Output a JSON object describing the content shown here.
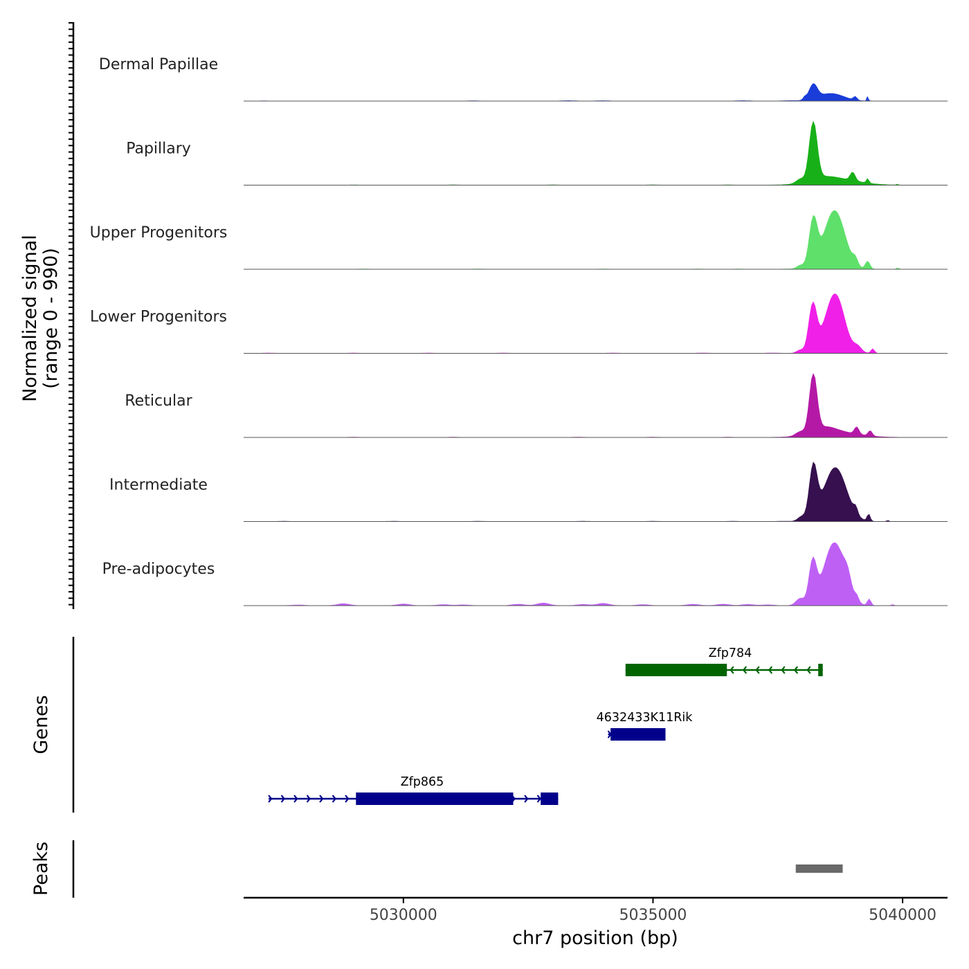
{
  "chart_data": {
    "type": "area",
    "title": "",
    "region": "chr7",
    "xlim": [
      5026800,
      5040900
    ],
    "xticks": [
      5030000,
      5035000,
      5040000
    ],
    "xtick_labels": [
      "5030000",
      "5035000",
      "5040000"
    ],
    "xlabel": "chr7 position (bp)",
    "ylabel_line1": "Normalized signal",
    "ylabel_line2": "(range 0 - 990)",
    "signal_range": [
      0,
      990
    ],
    "track_labels": {
      "genes": "Genes",
      "peaks": "Peaks"
    },
    "series": [
      {
        "name": "Dermal Papillae",
        "color": "#1a3cd8",
        "background": [
          [
            5027200,
            2
          ],
          [
            5031400,
            3
          ],
          [
            5033300,
            6
          ],
          [
            5034000,
            5
          ],
          [
            5036800,
            6
          ],
          [
            5037700,
            5
          ]
        ],
        "peaks": [
          [
            5038040,
            30,
            40
          ],
          [
            5038210,
            80,
            220
          ],
          [
            5038430,
            250,
            60
          ],
          [
            5038650,
            230,
            70
          ],
          [
            5039050,
            35,
            55
          ],
          [
            5039300,
            15,
            70
          ]
        ]
      },
      {
        "name": "Papillary",
        "color": "#18b018",
        "background": [
          [
            5029000,
            2
          ],
          [
            5031000,
            3
          ],
          [
            5033000,
            3
          ],
          [
            5035000,
            3
          ],
          [
            5036500,
            3
          ]
        ],
        "peaks": [
          [
            5037950,
            80,
            60
          ],
          [
            5038210,
            78,
            900
          ],
          [
            5038400,
            250,
            50
          ],
          [
            5038650,
            450,
            95
          ],
          [
            5039000,
            50,
            130
          ],
          [
            5039300,
            25,
            70
          ],
          [
            5039900,
            15,
            15
          ]
        ]
      },
      {
        "name": "Upper Progenitors",
        "color": "#5ee06a",
        "background": [
          [
            5029200,
            3
          ],
          [
            5031500,
            3
          ],
          [
            5034000,
            3
          ],
          [
            5035900,
            3
          ],
          [
            5036700,
            3
          ],
          [
            5037700,
            3
          ]
        ],
        "peaks": [
          [
            5037950,
            70,
            50
          ],
          [
            5038210,
            80,
            700
          ],
          [
            5038430,
            220,
            100
          ],
          [
            5038650,
            200,
            850
          ],
          [
            5039050,
            50,
            100
          ],
          [
            5039300,
            45,
            120
          ],
          [
            5039900,
            25,
            20
          ]
        ]
      },
      {
        "name": "Lower Progenitors",
        "color": "#f020e8",
        "background": [
          [
            5027300,
            3
          ],
          [
            5029000,
            3
          ],
          [
            5030500,
            3
          ],
          [
            5032000,
            3
          ],
          [
            5034200,
            3
          ],
          [
            5036000,
            4
          ],
          [
            5037400,
            4
          ]
        ],
        "peaks": [
          [
            5037950,
            70,
            50
          ],
          [
            5038200,
            80,
            720
          ],
          [
            5038430,
            160,
            120
          ],
          [
            5038660,
            180,
            880
          ],
          [
            5039100,
            80,
            90
          ],
          [
            5039400,
            35,
            70
          ]
        ]
      },
      {
        "name": "Reticular",
        "color": "#b419a6",
        "background": [
          [
            5029000,
            3
          ],
          [
            5031000,
            3
          ],
          [
            5033500,
            3
          ],
          [
            5035000,
            3
          ],
          [
            5036500,
            3
          ]
        ],
        "peaks": [
          [
            5037950,
            90,
            60
          ],
          [
            5038210,
            75,
            900
          ],
          [
            5038430,
            220,
            90
          ],
          [
            5038650,
            450,
            85
          ],
          [
            5039080,
            45,
            110
          ],
          [
            5039350,
            40,
            80
          ]
        ]
      },
      {
        "name": "Intermediate",
        "color": "#36104f",
        "background": [
          [
            5027600,
            3
          ],
          [
            5029800,
            3
          ],
          [
            5031500,
            3
          ],
          [
            5033600,
            3
          ],
          [
            5035000,
            3
          ],
          [
            5036600,
            3
          ],
          [
            5037600,
            3
          ]
        ],
        "peaks": [
          [
            5037970,
            70,
            60
          ],
          [
            5038210,
            78,
            780
          ],
          [
            5038420,
            250,
            60
          ],
          [
            5038660,
            220,
            800
          ],
          [
            5039060,
            40,
            100
          ],
          [
            5039320,
            30,
            110
          ],
          [
            5039700,
            15,
            25
          ]
        ]
      },
      {
        "name": "Pre-adipocytes",
        "color": "#bf60f5",
        "background": [
          [
            5027900,
            10
          ],
          [
            5028800,
            30
          ],
          [
            5030000,
            25
          ],
          [
            5030800,
            15
          ],
          [
            5031200,
            12
          ],
          [
            5032300,
            22
          ],
          [
            5032800,
            40
          ],
          [
            5033600,
            18
          ],
          [
            5034000,
            35
          ],
          [
            5034800,
            15
          ],
          [
            5035800,
            20
          ],
          [
            5036400,
            22
          ],
          [
            5036900,
            18
          ],
          [
            5037300,
            12
          ]
        ],
        "peaks": [
          [
            5037950,
            85,
            110
          ],
          [
            5038200,
            75,
            650
          ],
          [
            5038430,
            140,
            95
          ],
          [
            5038650,
            200,
            950
          ],
          [
            5038900,
            70,
            180
          ],
          [
            5039080,
            40,
            80
          ],
          [
            5039330,
            35,
            100
          ],
          [
            5039800,
            20,
            20
          ]
        ]
      }
    ],
    "genes": [
      {
        "name": "Zfp784",
        "strand": "-",
        "color": "#006400",
        "row": 1,
        "start": 5034450,
        "end": 5038400,
        "exons": [
          [
            5034450,
            5036480
          ],
          [
            5038310,
            5038400
          ]
        ]
      },
      {
        "name": "4632433K11Rik",
        "strand": "+",
        "color": "#00008b",
        "row": 2,
        "start": 5034100,
        "end": 5035250,
        "exons": [
          [
            5034150,
            5035250
          ]
        ]
      },
      {
        "name": "Zfp865",
        "strand": "+",
        "color": "#00008b",
        "row": 3,
        "start": 5027300,
        "end": 5033100,
        "exons": [
          [
            5029050,
            5032200
          ],
          [
            5032750,
            5033100
          ]
        ]
      }
    ],
    "peaks": [
      [
        5037860,
        5038800
      ]
    ],
    "peak_color": "#696969"
  }
}
